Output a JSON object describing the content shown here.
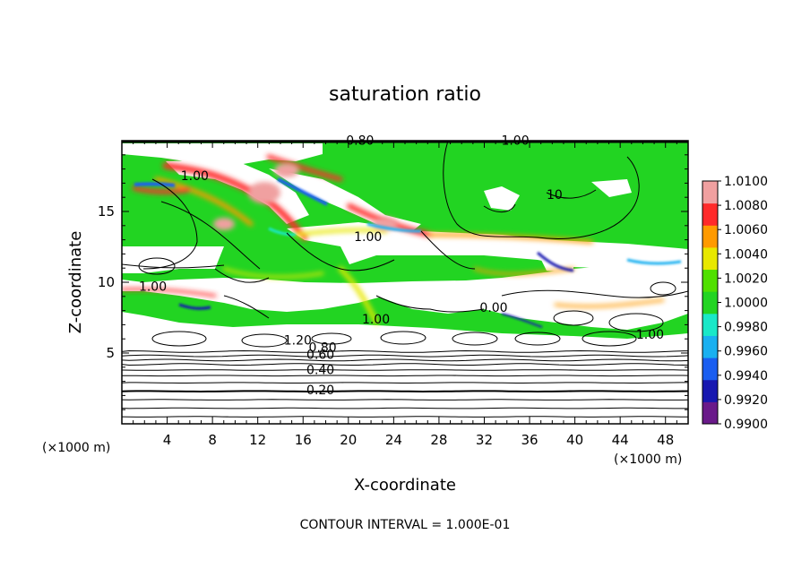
{
  "chart_data": {
    "type": "heatmap",
    "title": "saturation ratio",
    "xlabel": "X-coordinate",
    "ylabel": "Z-coordinate",
    "x_unit_label": "(×1000 m)",
    "x_unit_label_right": "(×1000 m)",
    "xlim": [
      0,
      50
    ],
    "ylim": [
      0,
      20
    ],
    "x_ticks": [
      4,
      8,
      12,
      16,
      20,
      24,
      28,
      32,
      36,
      40,
      44,
      48
    ],
    "y_ticks": [
      5,
      10,
      15
    ],
    "footer": "CONTOUR INTERVAL = 1.000E-01",
    "colorbar": {
      "min": 0.99,
      "max": 1.01,
      "levels": [
        "1.0100",
        "1.0080",
        "1.0060",
        "1.0040",
        "1.0020",
        "1.0000",
        "0.9980",
        "0.9960",
        "0.9940",
        "0.9920",
        "0.9900"
      ],
      "colors": [
        "#6a1a8a",
        "#1818b0",
        "#1a5ef0",
        "#1ab0f0",
        "#1ae8c8",
        "#22d422",
        "#50e000",
        "#e8e800",
        "#ff9a00",
        "#ff2a2a",
        "#f0a0a0"
      ]
    },
    "contour_labels": [
      {
        "text": "0.80",
        "x": 19.8,
        "y": 19.7
      },
      {
        "text": "1.00",
        "x": 33.5,
        "y": 19.7
      },
      {
        "text": "1.00",
        "x": 5.2,
        "y": 17.2
      },
      {
        "text": "10",
        "x": 37.5,
        "y": 15.9
      },
      {
        "text": "1.00",
        "x": 20.5,
        "y": 12.9
      },
      {
        "text": "1.00",
        "x": 1.5,
        "y": 9.4
      },
      {
        "text": "1.00",
        "x": 21.2,
        "y": 7.1
      },
      {
        "text": "0.00",
        "x": 31.6,
        "y": 7.9
      },
      {
        "text": "1.00",
        "x": 45.4,
        "y": 6.0
      },
      {
        "text": "1.20",
        "x": 14.3,
        "y": 5.6
      },
      {
        "text": "0.80",
        "x": 16.5,
        "y": 5.1
      },
      {
        "text": "0.60",
        "x": 16.3,
        "y": 4.6
      },
      {
        "text": "0.40",
        "x": 16.3,
        "y": 3.5
      },
      {
        "text": "0.20",
        "x": 16.3,
        "y": 2.1
      }
    ],
    "horizontal_contour_levels_z": [
      0.5,
      1.1,
      1.7,
      2.3,
      2.9,
      3.4,
      3.8,
      4.2,
      4.5,
      4.8,
      5.1
    ]
  }
}
